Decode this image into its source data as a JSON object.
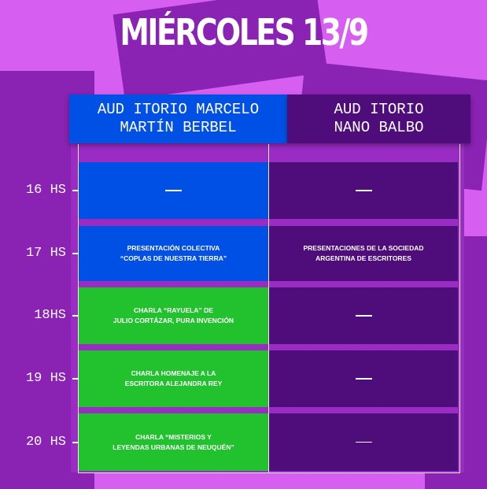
{
  "title": "MIÉRCOLES 13/9",
  "colors": {
    "background": "#d65ef0",
    "blue": "#0050e6",
    "purple": "#4e0d7a",
    "green": "#22c22e"
  },
  "venues": [
    {
      "name": "AUD ITORIO MARCELO\nMARTÍN BERBEL"
    },
    {
      "name": "AUD ITORIO\nNANO BALBO"
    }
  ],
  "schedule": [
    {
      "time": "16 HS",
      "events": [
        "—",
        "—"
      ]
    },
    {
      "time": "17 HS",
      "events": [
        "PRESENTACIÓN COLECTIVA\n“COPLAS DE NUESTRA TIERRA”",
        "PRESENTACIONES DE LA SOCIEDAD\nARGENTINA DE ESCRITORES"
      ]
    },
    {
      "time": "18HS",
      "events": [
        "CHARLA  “RAYUELA” DE\nJULIO CORTÁZAR, PURA INVENCIÓN",
        "—"
      ]
    },
    {
      "time": "19 HS",
      "events": [
        "CHARLA HOMENAJE A LA\nESCRITORA ALEJANDRA REY",
        "—"
      ]
    },
    {
      "time": "20 HS",
      "events": [
        "CHARLA “MISTERIOS Y\nLEYENDAS URBANAS DE NEUQUÉN”",
        "—"
      ]
    }
  ]
}
